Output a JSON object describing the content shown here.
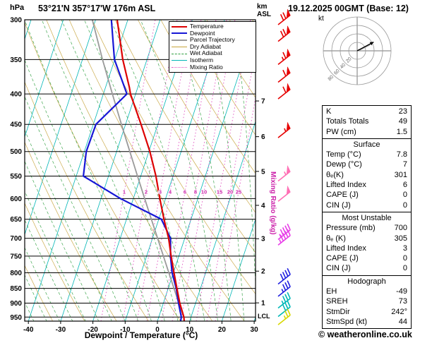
{
  "header": {
    "station": "53°21'N 357°17'W 176m ASL",
    "datetime": "19.12.2025 00GMT (Base: 12)"
  },
  "footer": {
    "copyright": "© weatheronline.co.uk"
  },
  "hodograph": {
    "unit_label": "kt",
    "rings": [
      20,
      40,
      60,
      80
    ],
    "storm_dir_deg": 242,
    "storm_spd_kt": 44
  },
  "panel": {
    "sections": [
      {
        "rows": [
          [
            "K",
            "23"
          ],
          [
            "Totals Totals",
            "49"
          ],
          [
            "PW (cm)",
            "1.5"
          ]
        ]
      },
      {
        "title": "Surface",
        "rows": [
          [
            "Temp (°C)",
            "7.8"
          ],
          [
            "Dewp (°C)",
            "7"
          ],
          [
            "θₑ(K)",
            "301"
          ],
          [
            "Lifted Index",
            "6"
          ],
          [
            "CAPE (J)",
            "0"
          ],
          [
            "CIN (J)",
            "0"
          ]
        ]
      },
      {
        "title": "Most Unstable",
        "rows": [
          [
            "Pressure (mb)",
            "700"
          ],
          [
            "θₑ (K)",
            "305"
          ],
          [
            "Lifted Index",
            "3"
          ],
          [
            "CAPE (J)",
            "0"
          ],
          [
            "CIN (J)",
            "0"
          ]
        ]
      },
      {
        "title": "Hodograph",
        "rows": [
          [
            "EH",
            "-49"
          ],
          [
            "SREH",
            "73"
          ],
          [
            "StmDir",
            "242°"
          ],
          [
            "StmSpd (kt)",
            "44"
          ]
        ]
      }
    ]
  },
  "chart_data": {
    "type": "line",
    "title": "53°21'N 357°17'W 176m ASL",
    "x_axis": {
      "label": "Dewpoint / Temperature (°C)",
      "ticks": [
        -40,
        -30,
        -20,
        -10,
        0,
        10,
        20,
        30
      ]
    },
    "y_axis": {
      "label": "hPa",
      "scale": "log",
      "ticks": [
        300,
        350,
        400,
        450,
        500,
        550,
        600,
        650,
        700,
        750,
        800,
        850,
        900,
        950
      ]
    },
    "secondary_y_axis": {
      "unit_top": "km",
      "unit_bottom": "ASL",
      "extra": "LCL",
      "km_levels": [
        {
          "km": 7,
          "p": 411
        },
        {
          "km": 6,
          "p": 472
        },
        {
          "km": 5,
          "p": 540
        },
        {
          "km": 4,
          "p": 616
        },
        {
          "km": 3,
          "p": 701
        },
        {
          "km": 2,
          "p": 795
        },
        {
          "km": 1,
          "p": 899
        }
      ]
    },
    "mixing_ratio_axis_label": "Mixing Ratio (g/kg)",
    "mixing_ratio_values": [
      1,
      2,
      3,
      4,
      6,
      8,
      10,
      15,
      20,
      25
    ],
    "legend": [
      {
        "label": "Temperature",
        "color": "#dd0000"
      },
      {
        "label": "Dewpoint",
        "color": "#1616d6"
      },
      {
        "label": "Parcel Trajectory",
        "color": "#9a9a9a"
      },
      {
        "label": "Dry Adiabat",
        "color": "#c7a33b"
      },
      {
        "label": "Wet Adiabat",
        "color": "#2e9e3e"
      },
      {
        "label": "Isotherm",
        "color": "#00b6b6"
      },
      {
        "label": "Mixing Ratio",
        "color": "#e04fc0"
      }
    ],
    "series": [
      {
        "name": "Temperature",
        "color": "#dd0000",
        "points": [
          [
            965,
            8.3
          ],
          [
            950,
            7.8
          ],
          [
            900,
            5.1
          ],
          [
            850,
            2.7
          ],
          [
            800,
            0.2
          ],
          [
            750,
            -2.4
          ],
          [
            700,
            -5.0
          ],
          [
            650,
            -8.4
          ],
          [
            600,
            -11.8
          ],
          [
            550,
            -15.3
          ],
          [
            500,
            -19.7
          ],
          [
            450,
            -25.2
          ],
          [
            400,
            -31.6
          ],
          [
            390,
            -32.6
          ],
          [
            350,
            -37.5
          ],
          [
            300,
            -43.3
          ]
        ]
      },
      {
        "name": "Dewpoint",
        "color": "#1616d6",
        "points": [
          [
            965,
            7.2
          ],
          [
            950,
            7.0
          ],
          [
            900,
            4.7
          ],
          [
            850,
            2.5
          ],
          [
            800,
            -0.4
          ],
          [
            750,
            -2.6
          ],
          [
            700,
            -4.4
          ],
          [
            650,
            -9.2
          ],
          [
            600,
            -24.0
          ],
          [
            550,
            -37.8
          ],
          [
            500,
            -39.4
          ],
          [
            450,
            -39.2
          ],
          [
            400,
            -32.7
          ],
          [
            350,
            -40.1
          ],
          [
            300,
            -45.1
          ]
        ]
      },
      {
        "name": "Parcel Trajectory",
        "color": "#9a9a9a",
        "points": [
          [
            965,
            8.3
          ],
          [
            950,
            7.8
          ],
          [
            900,
            4.8
          ],
          [
            850,
            1.8
          ],
          [
            800,
            -1.4
          ],
          [
            750,
            -4.8
          ],
          [
            700,
            -8.4
          ],
          [
            650,
            -12.3
          ],
          [
            600,
            -16.5
          ],
          [
            550,
            -21.0
          ],
          [
            500,
            -25.9
          ],
          [
            450,
            -31.3
          ],
          [
            400,
            -37.2
          ],
          [
            350,
            -43.8
          ],
          [
            300,
            -51.0
          ]
        ]
      }
    ],
    "wind_barbs": [
      {
        "p": 300,
        "kt": 70,
        "color": "#e60000"
      },
      {
        "p": 320,
        "kt": 70,
        "color": "#e60000"
      },
      {
        "p": 350,
        "kt": 65,
        "color": "#e60000"
      },
      {
        "p": 375,
        "kt": 60,
        "color": "#e60000"
      },
      {
        "p": 400,
        "kt": 60,
        "color": "#e60000"
      },
      {
        "p": 465,
        "kt": 55,
        "color": "#e60000"
      },
      {
        "p": 550,
        "kt": 55,
        "color": "#ff6eb4"
      },
      {
        "p": 595,
        "kt": 50,
        "color": "#ff6eb4"
      },
      {
        "p": 690,
        "kt": 45,
        "color": "#e83ee8"
      },
      {
        "p": 705,
        "kt": 45,
        "color": "#e83ee8"
      },
      {
        "p": 820,
        "kt": 40,
        "color": "#2020e0"
      },
      {
        "p": 860,
        "kt": 35,
        "color": "#2020e0"
      },
      {
        "p": 900,
        "kt": 35,
        "color": "#00b8b8"
      },
      {
        "p": 930,
        "kt": 30,
        "color": "#00b8b8"
      },
      {
        "p": 960,
        "kt": 25,
        "color": "#d8d800"
      }
    ]
  }
}
